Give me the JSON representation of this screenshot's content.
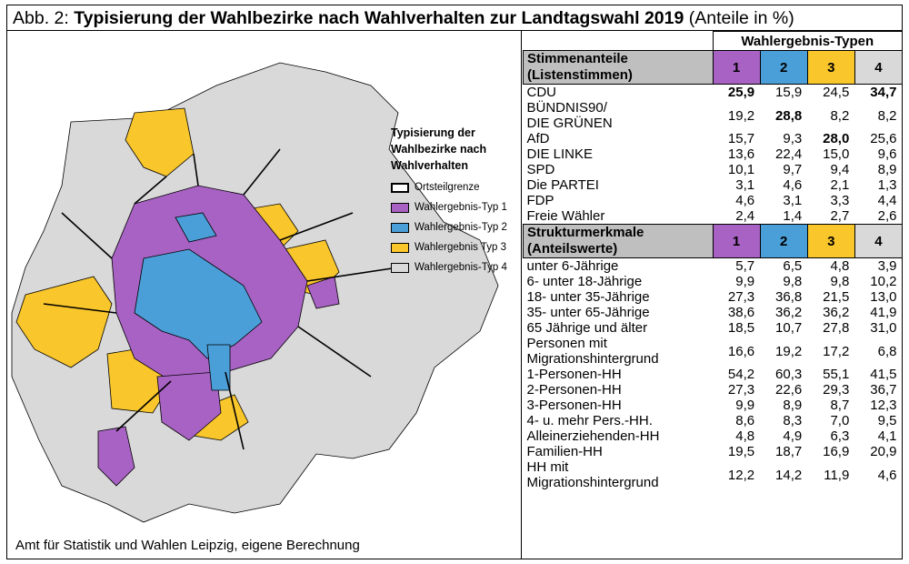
{
  "title": {
    "prefix": "Abb. 2:",
    "main": "Typisierung der Wahlbezirke nach Wahlverhalten zur Landtagswahl 2019",
    "suffix": "(Anteile in %)"
  },
  "legend": {
    "title_lines": [
      "Typisierung der",
      "Wahlbezirke nach",
      "Wahlverhalten"
    ],
    "items": [
      {
        "label": "Ortsteilgrenze",
        "color": "#ffffff"
      },
      {
        "label": "Wahlergebnis-Typ 1",
        "color": "#a862c4"
      },
      {
        "label": "Wahlergebnis-Typ 2",
        "color": "#4b9fd8"
      },
      {
        "label": "Wahlergebnis Typ 3",
        "color": "#f9c62b"
      },
      {
        "label": "Wahlergebnis-Typ 4",
        "color": "#d9d9d9"
      }
    ]
  },
  "source": "Amt für Statistik und Wahlen Leipzig, eigene Berechnung",
  "table": {
    "group_header": "Wahlergebnis-Typen",
    "type_labels": [
      "1",
      "2",
      "3",
      "4"
    ],
    "section1": {
      "header_lines": [
        "Stimmenanteile",
        "(Listenstimmen)"
      ],
      "rows": [
        {
          "label": "CDU",
          "values": [
            "25,9",
            "15,9",
            "24,5",
            "34,7"
          ],
          "bold": [
            true,
            false,
            false,
            true
          ]
        },
        {
          "label_lines": [
            "BÜNDNIS90/",
            "DIE GRÜNEN"
          ],
          "values": [
            "19,2",
            "28,8",
            "8,2",
            "8,2"
          ],
          "bold": [
            false,
            true,
            false,
            false
          ]
        },
        {
          "label": "AfD",
          "values": [
            "15,7",
            "9,3",
            "28,0",
            "25,6"
          ],
          "bold": [
            false,
            false,
            true,
            false
          ]
        },
        {
          "label": "DIE LINKE",
          "values": [
            "13,6",
            "22,4",
            "15,0",
            "9,6"
          ],
          "bold": [
            false,
            false,
            false,
            false
          ]
        },
        {
          "label": "SPD",
          "values": [
            "10,1",
            "9,7",
            "9,4",
            "8,9"
          ],
          "bold": [
            false,
            false,
            false,
            false
          ]
        },
        {
          "label": "Die PARTEI",
          "values": [
            "3,1",
            "4,6",
            "2,1",
            "1,3"
          ],
          "bold": [
            false,
            false,
            false,
            false
          ]
        },
        {
          "label": "FDP",
          "values": [
            "4,6",
            "3,1",
            "3,3",
            "4,4"
          ],
          "bold": [
            false,
            false,
            false,
            false
          ]
        },
        {
          "label": "Freie Wähler",
          "values": [
            "2,4",
            "1,4",
            "2,7",
            "2,6"
          ],
          "bold": [
            false,
            false,
            false,
            false
          ]
        }
      ]
    },
    "section2": {
      "header_lines": [
        "Strukturmerkmale",
        "(Anteilswerte)"
      ],
      "rows": [
        {
          "label": "unter 6-Jährige",
          "values": [
            "5,7",
            "6,5",
            "4,8",
            "3,9"
          ]
        },
        {
          "label": "6- unter 18-Jährige",
          "values": [
            "9,9",
            "9,8",
            "9,8",
            "10,2"
          ]
        },
        {
          "label": "18- unter 35-Jährige",
          "values": [
            "27,3",
            "36,8",
            "21,5",
            "13,0"
          ]
        },
        {
          "label": "35- unter 65-Jährige",
          "values": [
            "38,6",
            "36,2",
            "36,2",
            "41,9"
          ]
        },
        {
          "label": "65 Jährige und älter",
          "values": [
            "18,5",
            "10,7",
            "27,8",
            "31,0"
          ]
        },
        {
          "label_lines": [
            "Personen mit",
            "Migrationshintergrund"
          ],
          "values": [
            "16,6",
            "19,2",
            "17,2",
            "6,8"
          ]
        },
        {
          "label": "1-Personen-HH",
          "values": [
            "54,2",
            "60,3",
            "55,1",
            "41,5"
          ]
        },
        {
          "label": "2-Personen-HH",
          "values": [
            "27,3",
            "22,6",
            "29,3",
            "36,7"
          ]
        },
        {
          "label": "3-Personen-HH",
          "values": [
            "9,9",
            "8,9",
            "8,7",
            "12,3"
          ]
        },
        {
          "label": "4- u. mehr Pers.-HH.",
          "values": [
            "8,6",
            "8,3",
            "7,0",
            "9,5"
          ]
        },
        {
          "label": "Alleinerziehenden-HH",
          "values": [
            "4,8",
            "4,9",
            "6,3",
            "4,1"
          ]
        },
        {
          "label": "Familien-HH",
          "values": [
            "19,5",
            "18,7",
            "16,9",
            "20,9"
          ]
        },
        {
          "label_lines": [
            "HH mit",
            "Migrationshintergrund"
          ],
          "values": [
            "12,2",
            "14,2",
            "11,9",
            "4,6"
          ]
        }
      ]
    }
  }
}
